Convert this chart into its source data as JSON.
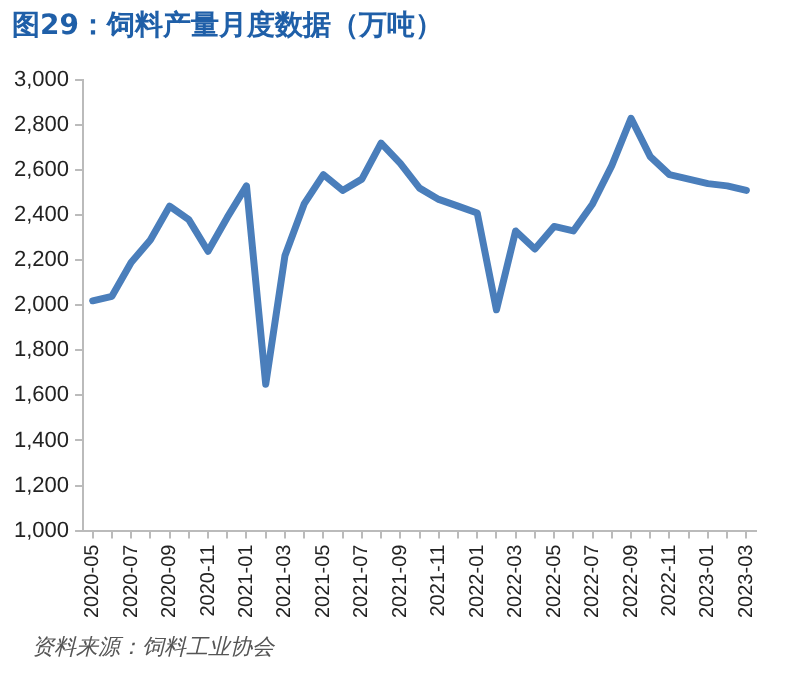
{
  "chart_data": {
    "type": "line",
    "title": "图29：饲料产量月度数据（万吨）",
    "categories": [
      "2020-05",
      null,
      "2020-07",
      null,
      "2020-09",
      null,
      "2020-11",
      null,
      "2021-01",
      null,
      "2021-03",
      null,
      "2021-05",
      null,
      "2021-07",
      null,
      "2021-09",
      null,
      "2021-11",
      null,
      "2022-01",
      null,
      "2022-03",
      null,
      "2022-05",
      null,
      "2022-07",
      null,
      "2022-09",
      null,
      "2022-11",
      null,
      "2023-01",
      null,
      "2023-03"
    ],
    "series": [
      {
        "color": "#4a7ebb",
        "values": [
          2020,
          2040,
          2190,
          2290,
          2440,
          2380,
          2240,
          2390,
          2530,
          1650,
          2220,
          2450,
          2580,
          2510,
          2560,
          2720,
          2630,
          2520,
          2470,
          2440,
          2410,
          1980,
          2330,
          2250,
          2350,
          2330,
          2450,
          2620,
          2830,
          2660,
          2580,
          2560,
          2540,
          2530,
          2510
        ]
      }
    ],
    "ylim": [
      1000,
      3000
    ],
    "yticks": [
      {
        "value": 1000,
        "label": "1,000"
      },
      {
        "value": 1200,
        "label": "1,200"
      },
      {
        "value": 1400,
        "label": "1,400"
      },
      {
        "value": 1600,
        "label": "1,600"
      },
      {
        "value": 1800,
        "label": "1,800"
      },
      {
        "value": 2000,
        "label": "2,000"
      },
      {
        "value": 2200,
        "label": "2,200"
      },
      {
        "value": 2400,
        "label": "2,400"
      },
      {
        "value": 2600,
        "label": "2,600"
      },
      {
        "value": 2800,
        "label": "2,800"
      },
      {
        "value": 3000,
        "label": "3,000"
      }
    ],
    "grid": false,
    "legend": false,
    "marker": "none",
    "line_style": "solid",
    "annotations": [
      "资料来源：饲料工业协会"
    ]
  }
}
